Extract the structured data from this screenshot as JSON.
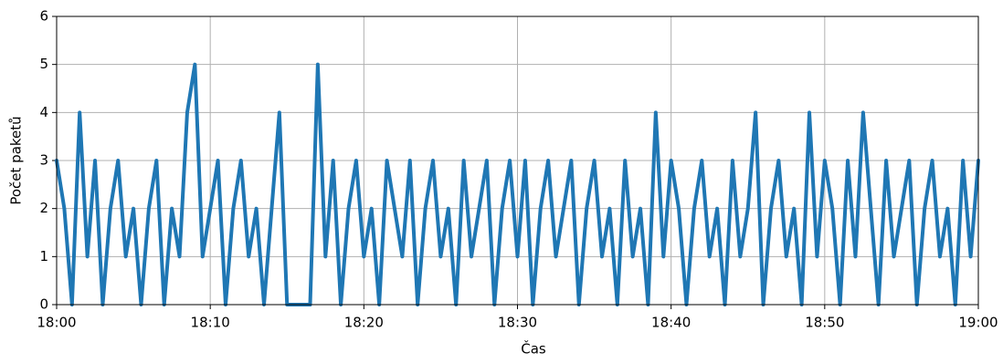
{
  "chart_data": {
    "type": "line",
    "xlabel": "Čas",
    "ylabel": "Počet paketů",
    "color": "#1f77b4",
    "grid": true,
    "xlim": [
      0,
      60
    ],
    "ylim": [
      0,
      6
    ],
    "xticks": [
      {
        "value": 0,
        "label": "18:00"
      },
      {
        "value": 10,
        "label": "18:10"
      },
      {
        "value": 20,
        "label": "18:20"
      },
      {
        "value": 30,
        "label": "18:30"
      },
      {
        "value": 40,
        "label": "18:40"
      },
      {
        "value": 50,
        "label": "18:50"
      },
      {
        "value": 60,
        "label": "19:00"
      }
    ],
    "yticks": [
      0,
      1,
      2,
      3,
      4,
      5,
      6
    ],
    "x": [
      0,
      0.5,
      1,
      1.5,
      2,
      2.5,
      3,
      3.5,
      4,
      4.5,
      5,
      5.5,
      6,
      6.5,
      7,
      7.5,
      8,
      8.5,
      9,
      9.5,
      10,
      10.5,
      11,
      11.5,
      12,
      12.5,
      13,
      13.5,
      14,
      14.5,
      15,
      15.5,
      16,
      16.5,
      17,
      17.5,
      18,
      18.5,
      19,
      19.5,
      20,
      20.5,
      21,
      21.5,
      22,
      22.5,
      23,
      23.5,
      24,
      24.5,
      25,
      25.5,
      26,
      26.5,
      27,
      27.5,
      28,
      28.5,
      29,
      29.5,
      30,
      30.5,
      31,
      31.5,
      32,
      32.5,
      33,
      33.5,
      34,
      34.5,
      35,
      35.5,
      36,
      36.5,
      37,
      37.5,
      38,
      38.5,
      39,
      39.5,
      40,
      40.5,
      41,
      41.5,
      42,
      42.5,
      43,
      43.5,
      44,
      44.5,
      45,
      45.5,
      46,
      46.5,
      47,
      47.5,
      48,
      48.5,
      49,
      49.5,
      50,
      50.5,
      51,
      51.5,
      52,
      52.5,
      53,
      53.5,
      54,
      54.5,
      55,
      55.5,
      56,
      56.5,
      57,
      57.5,
      58,
      58.5,
      59,
      59.5,
      60
    ],
    "values": [
      3,
      2,
      0,
      4,
      1,
      3,
      0,
      2,
      3,
      1,
      2,
      0,
      2,
      3,
      0,
      2,
      1,
      4,
      5,
      1,
      2,
      3,
      0,
      2,
      3,
      1,
      2,
      0,
      2,
      4,
      0,
      0,
      0,
      0,
      5,
      1,
      3,
      0,
      2,
      3,
      1,
      2,
      0,
      3,
      2,
      1,
      3,
      0,
      2,
      3,
      1,
      2,
      0,
      3,
      1,
      2,
      3,
      0,
      2,
      3,
      1,
      3,
      0,
      2,
      3,
      1,
      2,
      3,
      0,
      2,
      3,
      1,
      2,
      0,
      3,
      1,
      2,
      0,
      4,
      1,
      3,
      2,
      0,
      2,
      3,
      1,
      2,
      0,
      3,
      1,
      2,
      4,
      0,
      2,
      3,
      1,
      2,
      0,
      4,
      1,
      3,
      2,
      0,
      3,
      1,
      4,
      2,
      0,
      3,
      1,
      2,
      3,
      0,
      2,
      3,
      1,
      2,
      0,
      3,
      1,
      3
    ]
  }
}
